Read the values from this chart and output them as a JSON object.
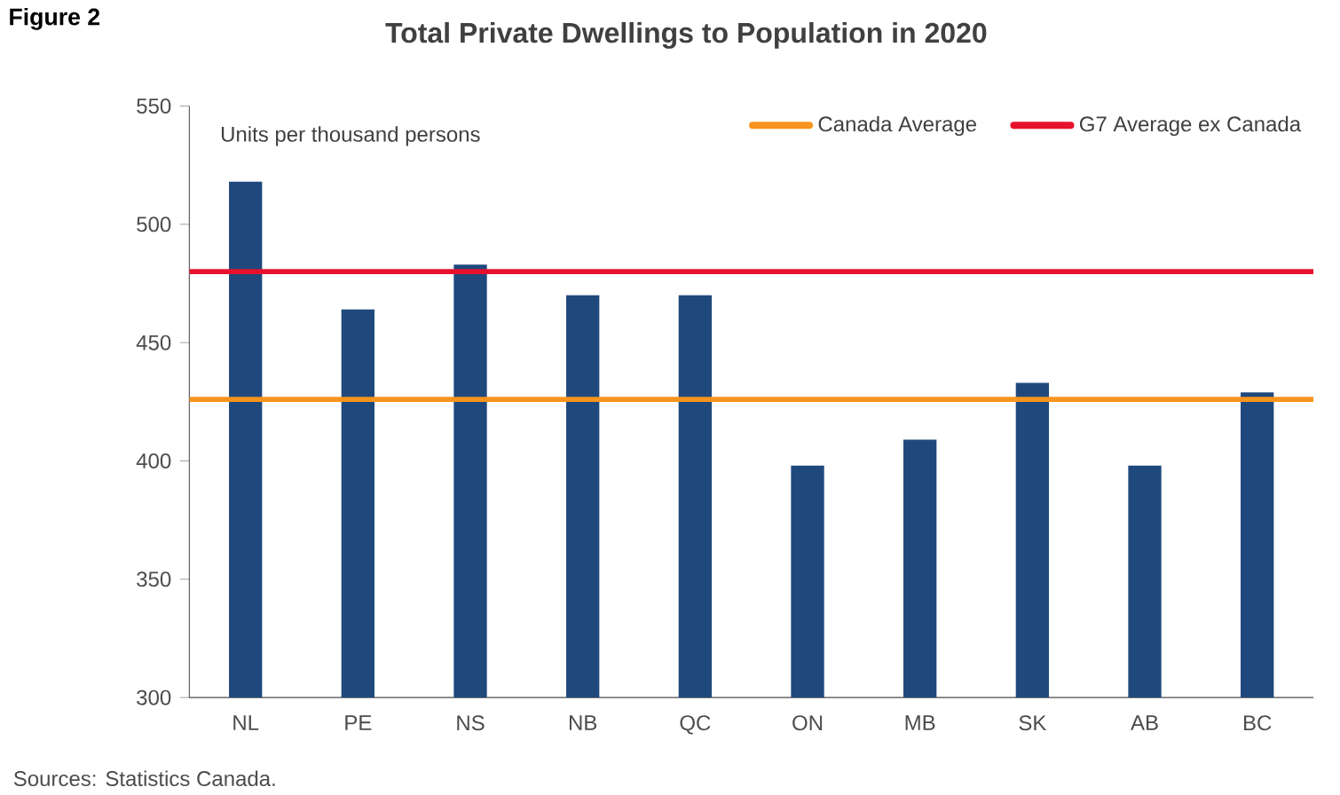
{
  "chart_data": {
    "type": "bar",
    "title": "Total Private Dwellings to Population in 2020",
    "ylabel": "Units per thousand persons",
    "annotations": [
      "Figure 2",
      "Sources: Statistics Canada."
    ],
    "categories": [
      "NL",
      "PE",
      "NS",
      "NB",
      "QC",
      "ON",
      "MB",
      "SK",
      "AB",
      "BC"
    ],
    "values": [
      518,
      464,
      483,
      470,
      470,
      398,
      409,
      433,
      398,
      429
    ],
    "color": "#1f497d",
    "ylim": [
      300,
      550
    ],
    "yticks": [
      300,
      350,
      400,
      450,
      500,
      550
    ],
    "ref_lines": [
      {
        "axis": "y",
        "value": 426,
        "label": "Canada Average",
        "color": "#f7941d"
      },
      {
        "axis": "y",
        "value": 480,
        "label": "G7 Average ex Canada",
        "color": "#e8112d"
      }
    ],
    "legend": "top right",
    "grid": false
  }
}
